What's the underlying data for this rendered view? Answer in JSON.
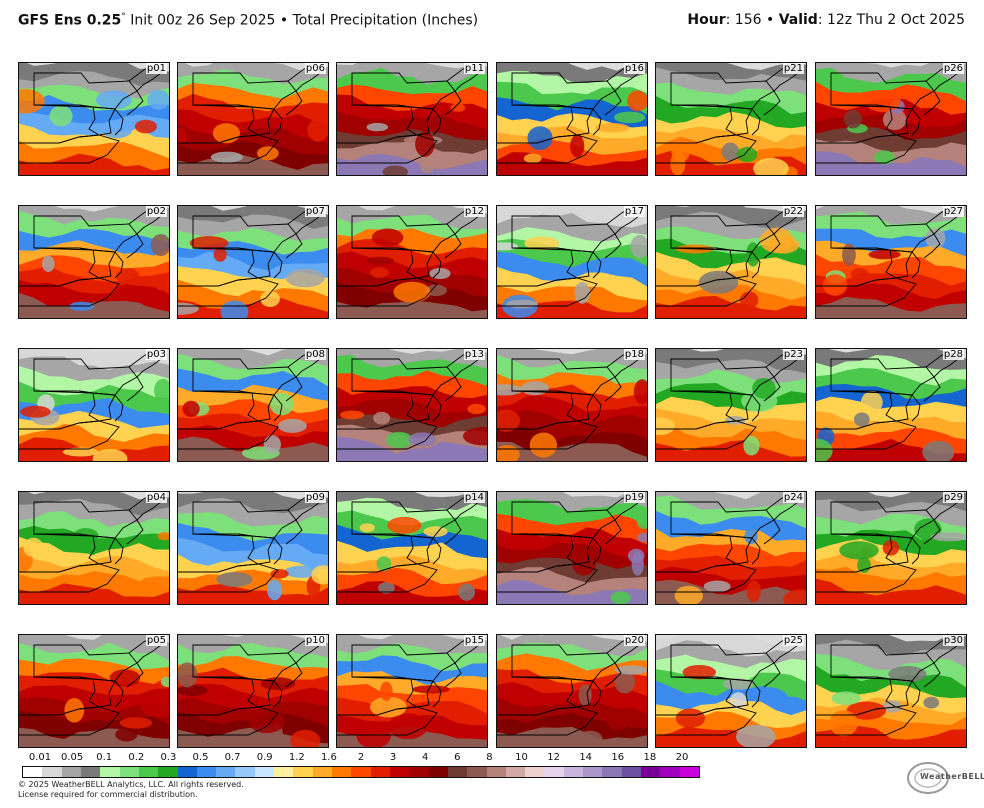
{
  "header": {
    "model": "GFS Ens 0.25",
    "degree_mark": "°",
    "init_text": " Init 00z 26 Sep 2025 • Total Precipitation (Inches)",
    "hour_label": "Hour",
    "hour_value": ": 156 • ",
    "valid_label": "Valid",
    "valid_value": ": 12z Thu 2 Oct 2025"
  },
  "panels": [
    {
      "label": "p01",
      "scheme": "blue-mix"
    },
    {
      "label": "p06",
      "scheme": "red-heavy"
    },
    {
      "label": "p11",
      "scheme": "red-purple"
    },
    {
      "label": "p16",
      "scheme": "mixed"
    },
    {
      "label": "p21",
      "scheme": "orange-green"
    },
    {
      "label": "p26",
      "scheme": "red-purple"
    },
    {
      "label": "p02",
      "scheme": "red-mix"
    },
    {
      "label": "p07",
      "scheme": "blue-mix"
    },
    {
      "label": "p12",
      "scheme": "red-heavy"
    },
    {
      "label": "p17",
      "scheme": "green-mix"
    },
    {
      "label": "p22",
      "scheme": "orange-green"
    },
    {
      "label": "p27",
      "scheme": "red-mix"
    },
    {
      "label": "p03",
      "scheme": "green-mix"
    },
    {
      "label": "p08",
      "scheme": "red-mix"
    },
    {
      "label": "p13",
      "scheme": "red-purple"
    },
    {
      "label": "p18",
      "scheme": "red-heavy"
    },
    {
      "label": "p23",
      "scheme": "orange-green"
    },
    {
      "label": "p28",
      "scheme": "mixed"
    },
    {
      "label": "p04",
      "scheme": "orange-green"
    },
    {
      "label": "p09",
      "scheme": "blue-mix"
    },
    {
      "label": "p14",
      "scheme": "mixed"
    },
    {
      "label": "p19",
      "scheme": "red-purple"
    },
    {
      "label": "p24",
      "scheme": "red-mix"
    },
    {
      "label": "p29",
      "scheme": "orange-green"
    },
    {
      "label": "p05",
      "scheme": "red-heavy"
    },
    {
      "label": "p10",
      "scheme": "red-heavy"
    },
    {
      "label": "p15",
      "scheme": "red-mix"
    },
    {
      "label": "p20",
      "scheme": "red-heavy"
    },
    {
      "label": "p25",
      "scheme": "green-mix"
    },
    {
      "label": "p30",
      "scheme": "orange-green"
    }
  ],
  "colorbar": {
    "ticks": [
      "0.01",
      "0.05",
      "0.1",
      "0.2",
      "0.3",
      "0.5",
      "0.7",
      "0.9",
      "1.2",
      "1.6",
      "2",
      "3",
      "4",
      "6",
      "8",
      "10",
      "12",
      "14",
      "16",
      "18",
      "20"
    ],
    "colors": [
      "#ffffff",
      "#d8d8d8",
      "#a6a6a6",
      "#7a7a7a",
      "#b3f7a6",
      "#7ee07a",
      "#4cc84c",
      "#22a822",
      "#1464d2",
      "#3c8cf0",
      "#64aaf5",
      "#96c8fa",
      "#c8e6ff",
      "#fff0a0",
      "#ffd250",
      "#ffaa28",
      "#ff7800",
      "#ff4600",
      "#e11e00",
      "#c00000",
      "#a00000",
      "#800000",
      "#6e3c32",
      "#8c5a50",
      "#b4827a",
      "#d2aaa5",
      "#ebd2cd",
      "#e6d2eb",
      "#c8b4dc",
      "#aa96c8",
      "#8c78b4",
      "#6e50a0",
      "#780096",
      "#a000be",
      "#c800dc"
    ]
  },
  "footer": {
    "copyright": "© 2025 WeatherBELL Analytics, LLC. All rights reserved.",
    "license": "License required for commercial distribution.",
    "logo_text": "WeatherBELL"
  }
}
